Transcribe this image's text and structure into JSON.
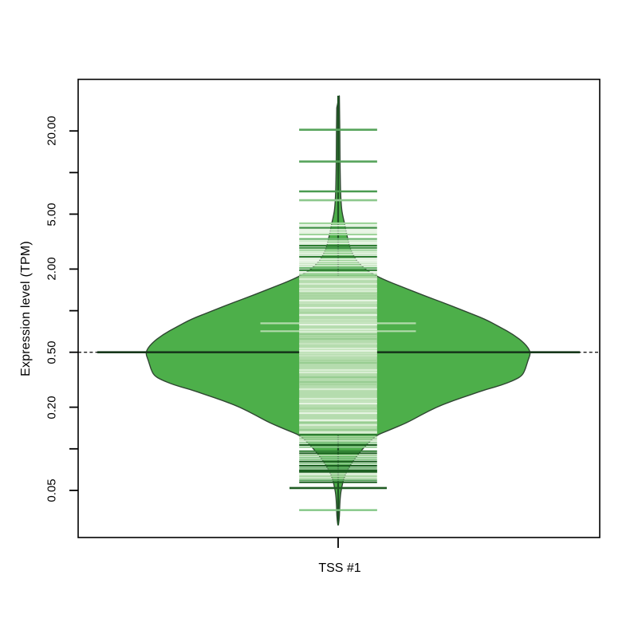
{
  "chart_data": {
    "type": "area",
    "variant": "beanplot-violin",
    "title": "",
    "xlabel": "",
    "ylabel": "Expression level (TPM)",
    "categories": [
      "TSS #1"
    ],
    "y_scale": "log10",
    "y_range": [
      0.023,
      47
    ],
    "grid": false,
    "legend": "none",
    "y_ticks": [
      {
        "value": 20.0,
        "label": "20.00"
      },
      {
        "value": 10.0,
        "label": ""
      },
      {
        "value": 5.0,
        "label": "5.00"
      },
      {
        "value": 2.0,
        "label": "2.00"
      },
      {
        "value": 1.0,
        "label": ""
      },
      {
        "value": 0.5,
        "label": "0.50"
      },
      {
        "value": 0.2,
        "label": "0.20"
      },
      {
        "value": 0.1,
        "label": ""
      },
      {
        "value": 0.05,
        "label": "0.05"
      }
    ],
    "overall_mean_tpm": 0.5,
    "bean_mean_tpm": 0.5,
    "center_spike_range_tpm": [
      0.028,
      36
    ],
    "density_profile": [
      [
        35.9,
        0.006
      ],
      [
        24.1,
        0.008
      ],
      [
        16.2,
        0.009
      ],
      [
        10.9,
        0.01
      ],
      [
        7.3,
        0.012
      ],
      [
        5.6,
        0.017
      ],
      [
        4.9,
        0.023
      ],
      [
        4.3,
        0.033
      ],
      [
        3.75,
        0.041
      ],
      [
        3.3,
        0.05
      ],
      [
        2.87,
        0.06
      ],
      [
        2.5,
        0.079
      ],
      [
        2.2,
        0.107
      ],
      [
        1.93,
        0.153
      ],
      [
        1.69,
        0.231
      ],
      [
        1.48,
        0.335
      ],
      [
        1.29,
        0.442
      ],
      [
        1.13,
        0.554
      ],
      [
        0.99,
        0.657
      ],
      [
        0.87,
        0.76
      ],
      [
        0.76,
        0.839
      ],
      [
        0.67,
        0.909
      ],
      [
        0.58,
        0.967
      ],
      [
        0.5,
        1.0
      ],
      [
        0.435,
        0.983
      ],
      [
        0.38,
        0.971
      ],
      [
        0.34,
        0.955
      ],
      [
        0.316,
        0.917
      ],
      [
        0.29,
        0.851
      ],
      [
        0.27,
        0.769
      ],
      [
        0.245,
        0.682
      ],
      [
        0.224,
        0.599
      ],
      [
        0.201,
        0.512
      ],
      [
        0.176,
        0.43
      ],
      [
        0.154,
        0.355
      ],
      [
        0.135,
        0.256
      ],
      [
        0.126,
        0.202
      ],
      [
        0.115,
        0.169
      ],
      [
        0.103,
        0.136
      ],
      [
        0.091,
        0.103
      ],
      [
        0.079,
        0.07
      ],
      [
        0.069,
        0.045
      ],
      [
        0.061,
        0.029
      ],
      [
        0.053,
        0.019
      ],
      [
        0.047,
        0.012
      ],
      [
        0.038,
        0.008
      ],
      [
        0.033,
        0.007
      ],
      [
        0.028,
        0.002
      ]
    ],
    "dense_band_tpm": {
      "top": 4.3,
      "bottom": 0.056,
      "halfwidth_fraction": 0.202
    },
    "observation_lines_upper": [
      {
        "tpm": 20.4,
        "halfwidth_fraction": 0.202,
        "color": "#57a45c",
        "thickness": 2.6
      },
      {
        "tpm": 12.0,
        "halfwidth_fraction": 0.202,
        "color": "#57a45c",
        "thickness": 2.6
      },
      {
        "tpm": 7.3,
        "halfwidth_fraction": 0.202,
        "color": "#4a9b50",
        "thickness": 2.6
      },
      {
        "tpm": 6.3,
        "halfwidth_fraction": 0.202,
        "color": "#8cc88c",
        "thickness": 2.6
      }
    ],
    "observation_lines_duplicates": [
      {
        "tpm": 0.81,
        "halfwidth_fraction": 0.403,
        "color": "#b2dbab",
        "thickness": 2.2
      },
      {
        "tpm": 0.71,
        "halfwidth_fraction": 0.403,
        "color": "#b2dbab",
        "thickness": 2.2
      }
    ],
    "observation_lines_lower": [
      {
        "tpm": 0.069,
        "halfwidth_fraction": 0.202,
        "color": "#1b5e20",
        "thickness": 4.0
      },
      {
        "tpm": 0.052,
        "halfwidth_fraction": 0.252,
        "color": "#205c24",
        "thickness": 2.6
      },
      {
        "tpm": 0.036,
        "halfwidth_fraction": 0.202,
        "color": "#7cc47f",
        "thickness": 2.2
      }
    ],
    "colors": {
      "violin_fill": "#4DAF4A",
      "violin_outline": "#2f4632",
      "band": "#b5dcae",
      "center_line": "#1d5222",
      "mean_line": "#17381b",
      "overall_dashed_line": "#1a1a1a",
      "axis": "#000000"
    }
  }
}
